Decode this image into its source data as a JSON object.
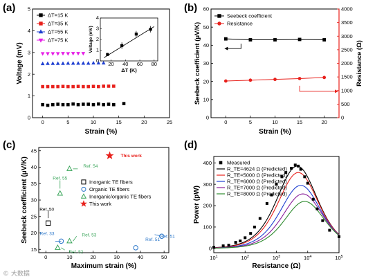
{
  "panel_labels": [
    "(a)",
    "(b)",
    "(c)",
    "(d)"
  ],
  "watermark": "© 大数据",
  "chart_data": [
    {
      "panel": "(a)",
      "type": "scatter",
      "xlabel": "Strain (%)",
      "ylabel": "Voltage (mV)",
      "xlim": [
        -2,
        25
      ],
      "ylim": [
        0,
        5
      ],
      "xticks": [
        0,
        5,
        10,
        15,
        20,
        25
      ],
      "yticks": [
        0,
        1,
        2,
        3,
        4,
        5
      ],
      "legend_position": "top-left",
      "series": [
        {
          "name": "ΔT=15 K",
          "color": "#000000",
          "marker": "square",
          "x": [
            0,
            1,
            2,
            3,
            4,
            5,
            6,
            7,
            8,
            9,
            10,
            11,
            12,
            13,
            14,
            16
          ],
          "y": [
            0.6,
            0.57,
            0.6,
            0.62,
            0.6,
            0.6,
            0.63,
            0.6,
            0.62,
            0.62,
            0.6,
            0.63,
            0.6,
            0.62,
            0.6,
            0.65
          ]
        },
        {
          "name": "ΔT=35 K",
          "color": "#e8211c",
          "marker": "square",
          "x": [
            0,
            1,
            2,
            3,
            4,
            5,
            6,
            7,
            8,
            9,
            10,
            11,
            12,
            13,
            14
          ],
          "y": [
            1.43,
            1.43,
            1.43,
            1.43,
            1.44,
            1.43,
            1.43,
            1.44,
            1.43,
            1.43,
            1.44,
            1.43,
            1.45,
            1.45,
            1.45
          ]
        },
        {
          "name": "ΔT=55 K",
          "color": "#1f3fd1",
          "marker": "triangle",
          "x": [
            0,
            1,
            2,
            3,
            4,
            5,
            6,
            7,
            8,
            9,
            10,
            11,
            12
          ],
          "y": [
            2.48,
            2.49,
            2.49,
            2.49,
            2.49,
            2.5,
            2.5,
            2.5,
            2.5,
            2.5,
            2.51,
            2.51,
            2.51
          ]
        },
        {
          "name": "ΔT=75 K",
          "color": "#e61ee6",
          "marker": "triangle-down",
          "x": [
            0,
            1,
            2,
            3,
            4,
            5,
            6,
            7,
            8
          ],
          "y": [
            2.95,
            2.95,
            2.95,
            2.95,
            2.96,
            2.95,
            2.96,
            2.96,
            2.96
          ]
        }
      ],
      "inset": {
        "type": "scatter",
        "xlabel": "ΔT (K)",
        "ylabel": "Voltage (mV)",
        "xlim": [
          5,
          85
        ],
        "ylim": [
          0,
          4
        ],
        "xticks": [
          20,
          40,
          60,
          80
        ],
        "yticks": [
          0,
          1,
          2,
          3,
          4
        ],
        "x": [
          15,
          35,
          55,
          75
        ],
        "y": [
          0.6,
          1.43,
          2.5,
          2.95
        ],
        "yerr": [
          0.15,
          0.3,
          0.3,
          0.3
        ],
        "fit": {
          "x": [
            10,
            80
          ],
          "y": [
            0.3,
            3.2
          ]
        }
      }
    },
    {
      "panel": "(b)",
      "type": "line",
      "xlabel": "Strain (%)",
      "ylabel": "Seebeck coefficient (μV/K)",
      "y2label": "Resistance (Ω)",
      "xlim": [
        -3,
        23
      ],
      "ylim": [
        0,
        60
      ],
      "y2lim": [
        0,
        4000
      ],
      "xticks": [
        0,
        5,
        10,
        15,
        20
      ],
      "yticks": [
        0,
        10,
        20,
        30,
        40,
        50,
        60
      ],
      "y2ticks": [
        0,
        500,
        1000,
        1500,
        2000,
        2500,
        3000,
        3500,
        4000
      ],
      "legend_position": "top-left",
      "x": [
        0,
        5,
        10,
        15,
        20
      ],
      "series": [
        {
          "name": "Seebeck coefficient",
          "axis": "left",
          "color": "#000000",
          "marker": "square",
          "y": [
            43.5,
            43.0,
            43.0,
            43.2,
            43.0
          ]
        },
        {
          "name": "Resistance",
          "axis": "right",
          "color": "#e8211c",
          "marker": "circle",
          "y": [
            1350,
            1380,
            1410,
            1440,
            1480
          ]
        }
      ]
    },
    {
      "panel": "(c)",
      "type": "scatter",
      "xlabel": "Maximum strain (%)",
      "ylabel": "Seebeck coefficient (μV/K)",
      "xlim": [
        -3,
        52
      ],
      "ylim": [
        14,
        46
      ],
      "xticks": [
        0,
        10,
        20,
        30,
        40,
        50
      ],
      "yticks": [
        15,
        20,
        25,
        30,
        35,
        40,
        45
      ],
      "legend_position": "right",
      "legend": [
        {
          "name": "Inorganic TE fibers",
          "color": "#000000",
          "marker": "square"
        },
        {
          "name": "Organic TE fibers",
          "color": "#2a76c9",
          "marker": "circle"
        },
        {
          "name": "Inorganic/organic TE fibers",
          "color": "#3aa55a",
          "marker": "triangle"
        },
        {
          "name": "This work",
          "color": "#e8211c",
          "marker": "star"
        }
      ],
      "points": [
        {
          "label": "Ref. 50",
          "category": "Inorganic TE fibers",
          "x": 1,
          "y": 23
        },
        {
          "label": "Ref. 33",
          "category": "Organic TE fibers",
          "x": 6.5,
          "y": 17.5
        },
        {
          "label": "Ref. 51",
          "category": "Organic TE fibers",
          "x": 38,
          "y": 15.5
        },
        {
          "label": "Ref. 51",
          "category": "Organic TE fibers",
          "x": 49,
          "y": 19
        },
        {
          "label": "Ref. 55",
          "category": "Inorganic/organic TE fibers",
          "x": 6,
          "y": 32
        },
        {
          "label": "Ref. 54",
          "category": "Inorganic/organic TE fibers",
          "x": 10,
          "y": 39.5
        },
        {
          "label": "Ref. 53",
          "category": "Inorganic/organic TE fibers",
          "x": 10,
          "y": 17.5
        },
        {
          "label": "Ref. 52",
          "category": "Inorganic/organic TE fibers",
          "x": 5,
          "y": 15.5
        },
        {
          "label": "This work",
          "category": "This work",
          "x": 27,
          "y": 43.5
        }
      ]
    },
    {
      "panel": "(d)",
      "type": "line",
      "xlabel": "Resistance (Ω)",
      "ylabel": "Power (pW)",
      "xscale": "log",
      "xlim": [
        10,
        100000
      ],
      "ylim": [
        -20,
        430
      ],
      "xticks": [
        "10^1",
        "10^2",
        "10^3",
        "10^4",
        "10^5"
      ],
      "yticks": [
        0,
        100,
        200,
        300,
        400
      ],
      "legend_position": "top-left",
      "measured": {
        "name": "Measured",
        "x": [
          10,
          20,
          30,
          50,
          70,
          100,
          150,
          200,
          300,
          500,
          700,
          1000,
          1500,
          2000,
          3000,
          4000,
          5000,
          6000,
          8000,
          10000,
          15000,
          20000,
          30000,
          50000,
          100000
        ],
        "y": [
          5,
          12,
          15,
          28,
          35,
          50,
          70,
          100,
          140,
          210,
          250,
          300,
          335,
          355,
          375,
          390,
          385,
          370,
          335,
          305,
          230,
          185,
          130,
          85,
          55
        ]
      },
      "curves": [
        {
          "name": "R_TE=4624 Ω (Predicted)",
          "color": "#000000",
          "R": 4624,
          "Pmax": 385
        },
        {
          "name": "R_TE=5000 Ω (Predicted)",
          "color": "#e8211c",
          "R": 5000,
          "Pmax": 355
        },
        {
          "name": "R_TE=6000 Ω (Predicted)",
          "color": "#1f3fd1",
          "R": 6000,
          "Pmax": 295
        },
        {
          "name": "R_TE=7000 Ω (Predicted)",
          "color": "#8a1f9a",
          "R": 7000,
          "Pmax": 255
        },
        {
          "name": "R_TE=8000 Ω (Predicted)",
          "color": "#2e8b2e",
          "R": 8000,
          "Pmax": 220
        }
      ]
    }
  ]
}
